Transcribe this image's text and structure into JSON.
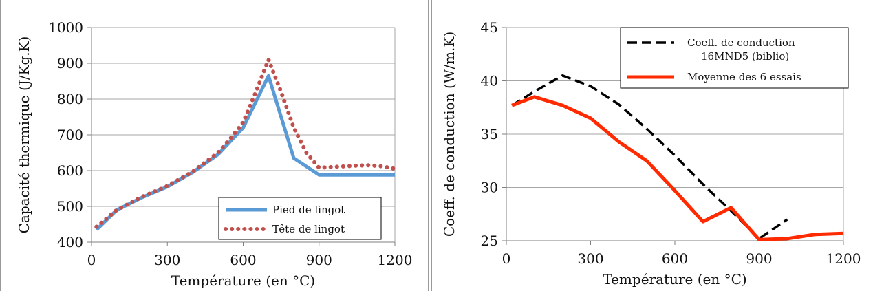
{
  "chart_data": [
    {
      "type": "line",
      "xlabel": "Température (en °C)",
      "ylabel": "Capacité thermique (J/Kg.K)",
      "xlim": [
        0,
        1200
      ],
      "ylim": [
        400,
        1000
      ],
      "x_ticks": [
        "0",
        "300",
        "600",
        "900",
        "1200"
      ],
      "y_ticks": [
        "400",
        "500",
        "600",
        "700",
        "800",
        "900",
        "1000"
      ],
      "grid": "horizontal",
      "legend_position": "bottom-right",
      "series": [
        {
          "name": "Pied de lingot",
          "color": "#5b9bd5",
          "style": "solid",
          "x": [
            20,
            100,
            200,
            300,
            400,
            500,
            600,
            700,
            800,
            900,
            1000,
            1100,
            1200
          ],
          "y": [
            435,
            490,
            525,
            555,
            595,
            645,
            720,
            865,
            635,
            588,
            588,
            588,
            588
          ]
        },
        {
          "name": "Tête de lingot",
          "color": "#c0504d",
          "style": "dotted",
          "x": [
            20,
            100,
            200,
            300,
            400,
            500,
            550,
            600,
            650,
            700,
            750,
            800,
            850,
            900,
            950,
            1000,
            1050,
            1100,
            1150,
            1200
          ],
          "y": [
            443,
            490,
            527,
            557,
            597,
            650,
            690,
            735,
            820,
            910,
            820,
            720,
            650,
            608,
            610,
            612,
            614,
            615,
            612,
            605
          ]
        }
      ]
    },
    {
      "type": "line",
      "xlabel": "Température (en °C)",
      "ylabel": "Coeff. de conduction (W/m.K)",
      "xlim": [
        0,
        1200
      ],
      "ylim": [
        25,
        45
      ],
      "x_ticks": [
        "0",
        "300",
        "600",
        "900",
        "1200"
      ],
      "y_ticks": [
        "25",
        "30",
        "35",
        "40",
        "45"
      ],
      "grid": "horizontal",
      "legend_position": "top-right",
      "series": [
        {
          "name": "Coeff. de conduction\n16MND5 (biblio)",
          "legend_lines": [
            "Coeff. de conduction",
            "16MND5 (biblio)"
          ],
          "color": "#000000",
          "style": "dashed",
          "x": [
            20,
            100,
            200,
            300,
            400,
            500,
            600,
            700,
            800,
            900,
            1000
          ],
          "y": [
            37.7,
            39.0,
            40.5,
            39.5,
            37.8,
            35.5,
            33.0,
            30.3,
            27.8,
            25.2,
            27.0
          ]
        },
        {
          "name": "Moyenne des 6 essais",
          "legend_lines": [
            "Moyenne des 6 essais"
          ],
          "color": "#ff2a00",
          "style": "solid",
          "x": [
            20,
            100,
            200,
            300,
            400,
            500,
            600,
            700,
            800,
            900,
            1000,
            1100,
            1200
          ],
          "y": [
            37.7,
            38.5,
            37.7,
            36.5,
            34.3,
            32.5,
            29.7,
            26.8,
            28.1,
            25.1,
            25.2,
            25.6,
            25.7
          ]
        }
      ]
    }
  ]
}
